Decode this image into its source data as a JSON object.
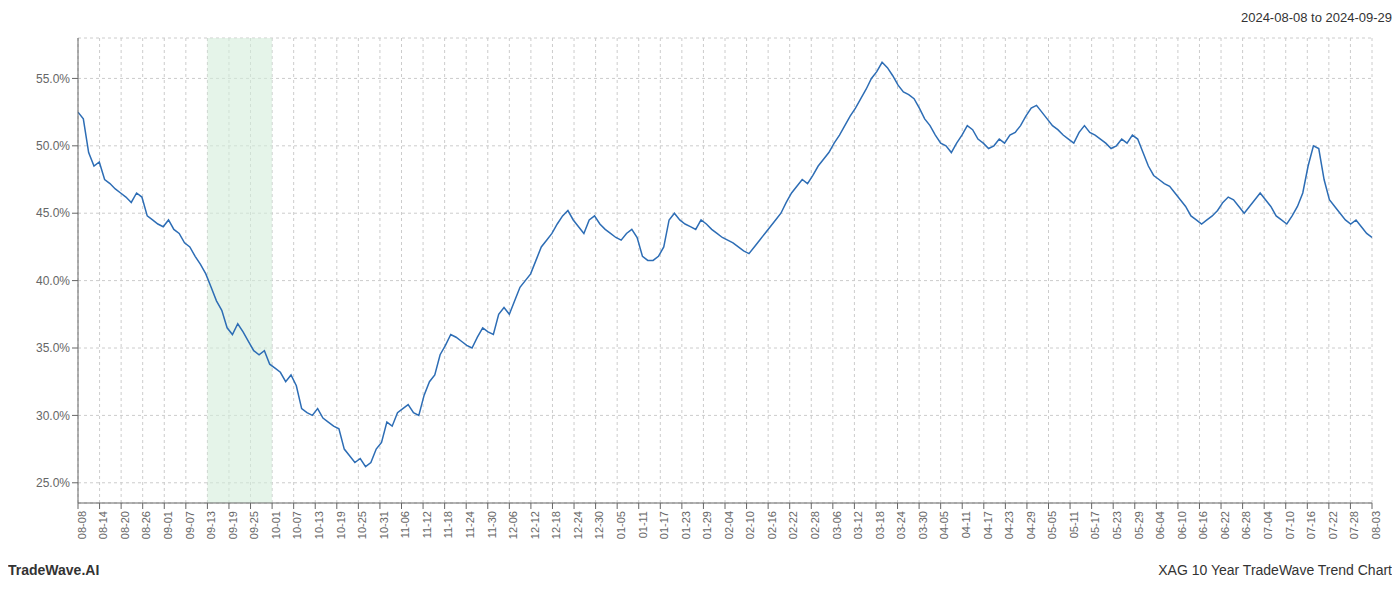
{
  "chart_data": {
    "type": "line",
    "title": "2024-08-08 to 2024-09-29",
    "annotations": [
      "TradeWave.AI",
      "XAG 10 Year TradeWave Trend Chart"
    ],
    "color": "#2d6db5",
    "grid": true,
    "highlight_range": [
      24.3,
      36.45
    ],
    "highlight_color": "#d4edda",
    "ylim": [
      23.5,
      58.0
    ],
    "yticks": [
      {
        "value": 25.0,
        "label": "25.0%"
      },
      {
        "value": 30.0,
        "label": "30.0%"
      },
      {
        "value": 35.0,
        "label": "35.0%"
      },
      {
        "value": 40.0,
        "label": "40.0%"
      },
      {
        "value": 45.0,
        "label": "45.0%"
      },
      {
        "value": 50.0,
        "label": "50.0%"
      },
      {
        "value": 55.0,
        "label": "55.0%"
      }
    ],
    "xlim": [
      0,
      243
    ],
    "xticks": [
      {
        "value": 0,
        "label": "08-08"
      },
      {
        "value": 4.05,
        "label": "08-14"
      },
      {
        "value": 8.1,
        "label": "08-20"
      },
      {
        "value": 12.15,
        "label": "08-26"
      },
      {
        "value": 16.2,
        "label": "09-01"
      },
      {
        "value": 20.25,
        "label": "09-07"
      },
      {
        "value": 24.3,
        "label": "09-13"
      },
      {
        "value": 28.35,
        "label": "09-19"
      },
      {
        "value": 32.4,
        "label": "09-25"
      },
      {
        "value": 36.45,
        "label": "10-01"
      },
      {
        "value": 40.5,
        "label": "10-07"
      },
      {
        "value": 44.55,
        "label": "10-13"
      },
      {
        "value": 48.6,
        "label": "10-19"
      },
      {
        "value": 52.65,
        "label": "10-25"
      },
      {
        "value": 56.7,
        "label": "10-31"
      },
      {
        "value": 60.75,
        "label": "11-06"
      },
      {
        "value": 64.8,
        "label": "11-12"
      },
      {
        "value": 68.85,
        "label": "11-18"
      },
      {
        "value": 72.9,
        "label": "11-24"
      },
      {
        "value": 76.95,
        "label": "11-30"
      },
      {
        "value": 81,
        "label": "12-06"
      },
      {
        "value": 85.05,
        "label": "12-12"
      },
      {
        "value": 89.1,
        "label": "12-18"
      },
      {
        "value": 93.15,
        "label": "12-24"
      },
      {
        "value": 97.2,
        "label": "12-30"
      },
      {
        "value": 101.25,
        "label": "01-05"
      },
      {
        "value": 105.3,
        "label": "01-11"
      },
      {
        "value": 109.35,
        "label": "01-17"
      },
      {
        "value": 113.4,
        "label": "01-23"
      },
      {
        "value": 117.45,
        "label": "01-29"
      },
      {
        "value": 121.5,
        "label": "02-04"
      },
      {
        "value": 125.55,
        "label": "02-10"
      },
      {
        "value": 129.6,
        "label": "02-16"
      },
      {
        "value": 133.65,
        "label": "02-22"
      },
      {
        "value": 137.7,
        "label": "02-28"
      },
      {
        "value": 141.75,
        "label": "03-06"
      },
      {
        "value": 145.8,
        "label": "03-12"
      },
      {
        "value": 149.85,
        "label": "03-18"
      },
      {
        "value": 153.9,
        "label": "03-24"
      },
      {
        "value": 157.95,
        "label": "03-30"
      },
      {
        "value": 162,
        "label": "04-05"
      },
      {
        "value": 166.05,
        "label": "04-11"
      },
      {
        "value": 170.1,
        "label": "04-17"
      },
      {
        "value": 174.15,
        "label": "04-23"
      },
      {
        "value": 178.2,
        "label": "04-29"
      },
      {
        "value": 182.25,
        "label": "05-05"
      },
      {
        "value": 186.3,
        "label": "05-11"
      },
      {
        "value": 190.35,
        "label": "05-17"
      },
      {
        "value": 194.4,
        "label": "05-23"
      },
      {
        "value": 198.45,
        "label": "05-29"
      },
      {
        "value": 202.5,
        "label": "06-04"
      },
      {
        "value": 206.55,
        "label": "06-10"
      },
      {
        "value": 210.6,
        "label": "06-16"
      },
      {
        "value": 214.65,
        "label": "06-22"
      },
      {
        "value": 218.7,
        "label": "06-28"
      },
      {
        "value": 222.75,
        "label": "07-04"
      },
      {
        "value": 226.8,
        "label": "07-10"
      },
      {
        "value": 230.85,
        "label": "07-16"
      },
      {
        "value": 234.9,
        "label": "07-22"
      },
      {
        "value": 238.95,
        "label": "07-28"
      },
      {
        "value": 243,
        "label": "08-03"
      }
    ],
    "values": [
      52.5,
      52.0,
      49.5,
      48.5,
      48.8,
      47.5,
      47.2,
      46.8,
      46.5,
      46.2,
      45.8,
      46.5,
      46.2,
      44.8,
      44.5,
      44.2,
      44.0,
      44.5,
      43.8,
      43.5,
      42.8,
      42.5,
      41.8,
      41.2,
      40.5,
      39.5,
      38.5,
      37.8,
      36.5,
      36.0,
      36.8,
      36.2,
      35.5,
      34.8,
      34.5,
      34.8,
      33.8,
      33.5,
      33.2,
      32.5,
      33.0,
      32.2,
      30.5,
      30.2,
      30.0,
      30.5,
      29.8,
      29.5,
      29.2,
      29.0,
      27.5,
      27.0,
      26.5,
      26.8,
      26.2,
      26.5,
      27.5,
      28.0,
      29.5,
      29.2,
      30.2,
      30.5,
      30.8,
      30.2,
      30.0,
      31.5,
      32.5,
      33.0,
      34.5,
      35.2,
      36.0,
      35.8,
      35.5,
      35.2,
      35.0,
      35.8,
      36.5,
      36.2,
      36.0,
      37.5,
      38.0,
      37.5,
      38.5,
      39.5,
      40.0,
      40.5,
      41.5,
      42.5,
      43.0,
      43.5,
      44.2,
      44.8,
      45.2,
      44.5,
      44.0,
      43.5,
      44.5,
      44.8,
      44.2,
      43.8,
      43.5,
      43.2,
      43.0,
      43.5,
      43.8,
      43.2,
      41.8,
      41.5,
      41.5,
      41.8,
      42.5,
      44.5,
      45.0,
      44.5,
      44.2,
      44.0,
      43.8,
      44.5,
      44.2,
      43.8,
      43.5,
      43.2,
      43.0,
      42.8,
      42.5,
      42.2,
      42.0,
      42.5,
      43.0,
      43.5,
      44.0,
      44.5,
      45.0,
      45.8,
      46.5,
      47.0,
      47.5,
      47.2,
      47.8,
      48.5,
      49.0,
      49.5,
      50.2,
      50.8,
      51.5,
      52.2,
      52.8,
      53.5,
      54.2,
      55.0,
      55.5,
      56.2,
      55.8,
      55.2,
      54.5,
      54.0,
      53.8,
      53.5,
      52.8,
      52.0,
      51.5,
      50.8,
      50.2,
      50.0,
      49.5,
      50.2,
      50.8,
      51.5,
      51.2,
      50.5,
      50.2,
      49.8,
      50.0,
      50.5,
      50.2,
      50.8,
      51.0,
      51.5,
      52.2,
      52.8,
      53.0,
      52.5,
      52.0,
      51.5,
      51.2,
      50.8,
      50.5,
      50.2,
      51.0,
      51.5,
      51.0,
      50.8,
      50.5,
      50.2,
      49.8,
      50.0,
      50.5,
      50.2,
      50.8,
      50.5,
      49.5,
      48.5,
      47.8,
      47.5,
      47.2,
      47.0,
      46.5,
      46.0,
      45.5,
      44.8,
      44.5,
      44.2,
      44.5,
      44.8,
      45.2,
      45.8,
      46.2,
      46.0,
      45.5,
      45.0,
      45.5,
      46.0,
      46.5,
      46.0,
      45.5,
      44.8,
      44.5,
      44.2,
      44.8,
      45.5,
      46.5,
      48.5,
      50.0,
      49.8,
      47.5,
      46.0,
      45.5,
      45.0,
      44.5,
      44.2,
      44.5,
      44.0,
      43.5,
      43.2
    ]
  }
}
